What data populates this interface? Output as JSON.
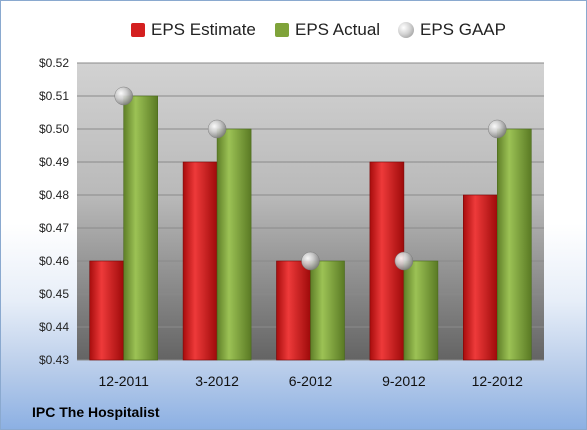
{
  "footer": {
    "company": "IPC The Hospitalist"
  },
  "colors": {
    "estimate": "#d42020",
    "actual": "#7fa33a",
    "gaap": "#c8c8c8",
    "plot_top": "#cfcfcf",
    "plot_bottom": "#6a6a6a"
  },
  "chart_data": {
    "type": "bar",
    "title": "",
    "xlabel": "",
    "ylabel": "",
    "categories": [
      "12-2011",
      "3-2012",
      "6-2012",
      "9-2012",
      "12-2012"
    ],
    "series": [
      {
        "name": "EPS Estimate",
        "kind": "bar",
        "values": [
          0.46,
          0.49,
          0.46,
          0.49,
          0.48
        ]
      },
      {
        "name": "EPS Actual",
        "kind": "bar",
        "values": [
          0.51,
          0.5,
          0.46,
          0.46,
          0.5
        ]
      },
      {
        "name": "EPS GAAP",
        "kind": "marker",
        "values": [
          0.51,
          0.5,
          0.46,
          0.46,
          0.5
        ]
      }
    ],
    "ylim": [
      0.43,
      0.52
    ],
    "yticks": [
      "$0.43",
      "$0.44",
      "$0.45",
      "$0.46",
      "$0.47",
      "$0.48",
      "$0.49",
      "$0.50",
      "$0.51",
      "$0.52"
    ],
    "grid": true,
    "legend_position": "top"
  }
}
